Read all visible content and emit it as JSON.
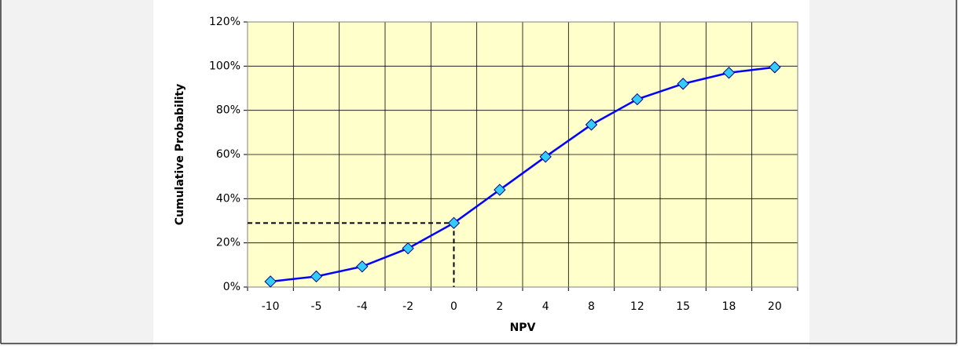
{
  "chart_data": {
    "type": "line",
    "x_label": "NPV",
    "y_label": "Cumulative Probability",
    "categories": [
      "-10",
      "-5",
      "-4",
      "-2",
      "0",
      "2",
      "4",
      "8",
      "12",
      "15",
      "18",
      "20"
    ],
    "series": [
      {
        "name": "Cumulative Probability",
        "color": "#0000ff",
        "marker_color": "#33ccff",
        "values": [
          2.5,
          4.8,
          9.3,
          17.5,
          29,
          44,
          59,
          73.5,
          85,
          92,
          97,
          99.5
        ]
      }
    ],
    "ylim": [
      0,
      120
    ],
    "yticks": [
      {
        "value": 0,
        "label": "0%"
      },
      {
        "value": 20,
        "label": "20%"
      },
      {
        "value": 40,
        "label": "40%"
      },
      {
        "value": 60,
        "label": "60%"
      },
      {
        "value": 80,
        "label": "80%"
      },
      {
        "value": 100,
        "label": "100%"
      },
      {
        "value": 120,
        "label": "120%"
      }
    ],
    "grid": true,
    "plot_background": "#ffffcc",
    "negative_label_color": "#ff0000",
    "dropline_index": 4
  }
}
